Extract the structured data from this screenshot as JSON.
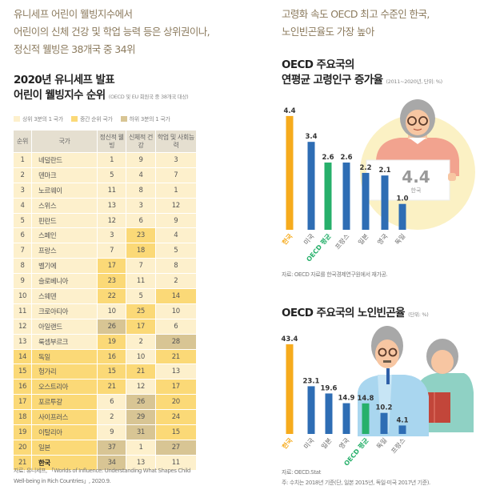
{
  "left": {
    "lead": [
      "유니세프 어린이 웰빙지수에서",
      "어린이의 신체 건강 및 학업 능력 등은 상위권이나,",
      "정신적 웰빙은 38개국 중 34위"
    ],
    "title": [
      "2020년 유니세프 발표",
      "어린이 웰빙지수 순위"
    ],
    "title_note": "(OECD 및 EU 회원국 중 38개국 대상)",
    "legend": [
      {
        "label": "상위 3분의 1 국가",
        "color": "#fdf0cc"
      },
      {
        "label": "중간 순위 국가",
        "color": "#fbd977"
      },
      {
        "label": "하위 3분의 1 국가",
        "color": "#d8c594"
      }
    ],
    "table": {
      "headers": [
        "순위",
        "국가",
        "정신적 웰빙",
        "신체적 건강",
        "학업 및 사회능력"
      ],
      "rows": [
        [
          1,
          "네덜란드",
          1,
          9,
          3
        ],
        [
          2,
          "덴마크",
          5,
          4,
          7
        ],
        [
          3,
          "노르웨이",
          11,
          8,
          1
        ],
        [
          4,
          "스위스",
          13,
          3,
          12
        ],
        [
          5,
          "핀란드",
          12,
          6,
          9
        ],
        [
          6,
          "스페인",
          3,
          23,
          4
        ],
        [
          7,
          "프랑스",
          7,
          18,
          5
        ],
        [
          8,
          "벨기에",
          17,
          7,
          8
        ],
        [
          9,
          "슬로베니아",
          23,
          11,
          2
        ],
        [
          10,
          "스웨덴",
          22,
          5,
          14
        ],
        [
          11,
          "크로아티아",
          10,
          25,
          10
        ],
        [
          12,
          "아일랜드",
          26,
          17,
          6
        ],
        [
          13,
          "룩셈부르크",
          19,
          2,
          28
        ],
        [
          14,
          "독일",
          16,
          10,
          21
        ],
        [
          15,
          "헝가리",
          15,
          21,
          13
        ],
        [
          16,
          "오스트리아",
          21,
          12,
          17
        ],
        [
          17,
          "포르투갈",
          6,
          26,
          20
        ],
        [
          18,
          "사이프러스",
          2,
          29,
          24
        ],
        [
          19,
          "이탈리아",
          9,
          31,
          15
        ],
        [
          20,
          "일본",
          37,
          1,
          27
        ],
        [
          21,
          "한국",
          34,
          13,
          11
        ]
      ]
    },
    "source": [
      "자료: 유니세프, 「Worlds of Influence: Understanding What Shapes Child",
      "Well-being in Rich Countries」, 2020.9."
    ]
  },
  "right": {
    "lead": [
      "고령화 속도 OECD 최고 수준인 한국,",
      "노인빈곤율도 가장 높아"
    ],
    "sign": {
      "value": "4.4",
      "label": "한국"
    }
  },
  "colors": {
    "korea": "#f6ab1d",
    "oecd": "#27b06b",
    "other": "#2e6db4"
  },
  "chart_data": [
    {
      "type": "bar",
      "title": "OECD 주요국의 연평균 고령인구 증가율",
      "title_lines": [
        "OECD 주요국의",
        "연평균 고령인구 증가율"
      ],
      "note": "(2011~2020년, 단위: %)",
      "categories": [
        "한국",
        "미국",
        "OECD 평균",
        "프랑스",
        "일본",
        "영국",
        "독일"
      ],
      "values": [
        4.4,
        3.4,
        2.6,
        2.6,
        2.2,
        2.1,
        1.0
      ],
      "labels": [
        "4.4",
        "3.4",
        "2.6",
        "2.6",
        "2.2",
        "2.1",
        "1.0"
      ],
      "grid": false,
      "source": "자료: OECD 자료를 한국경제연구원에서 재가공."
    },
    {
      "type": "bar",
      "title": "OECD 주요국의 노인빈곤율",
      "note": "(단위: %)",
      "categories": [
        "한국",
        "미국",
        "일본",
        "영국",
        "OECD 평균",
        "독일",
        "프랑스"
      ],
      "values": [
        43.4,
        23.1,
        19.6,
        14.9,
        14.8,
        10.2,
        4.1
      ],
      "labels": [
        "43.4",
        "23.1",
        "19.6",
        "14.9",
        "14.8",
        "10.2",
        "4.1"
      ],
      "grid": false,
      "source": [
        "자료: OECD.Stat",
        "주: 수치는 2018년 기준(단, 일본 2015년, 독일·미국 2017년 기준)."
      ]
    }
  ]
}
